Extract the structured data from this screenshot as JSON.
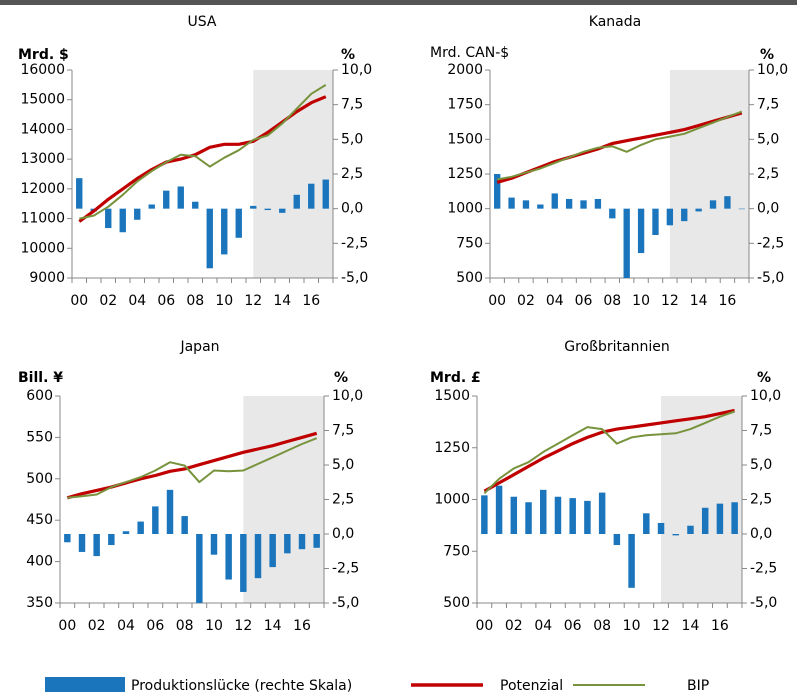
{
  "chart_data": [
    {
      "type": "combo",
      "title": "USA",
      "ylabel": "Mrd. $",
      "y2label": "%",
      "categories": [
        "00",
        null,
        "02",
        null,
        "04",
        null,
        "06",
        null,
        "08",
        null,
        "10",
        null,
        "12",
        null,
        "14",
        null,
        "16",
        null
      ],
      "ylim": [
        9000,
        16000
      ],
      "yticks": [
        9000,
        10000,
        11000,
        12000,
        13000,
        14000,
        15000,
        16000
      ],
      "y2lim": [
        -5,
        10
      ],
      "y2ticks": [
        {
          "value": -5,
          "label": "-5,0"
        },
        {
          "value": -2.5,
          "label": "-2,5"
        },
        {
          "value": 0,
          "label": "0,0"
        },
        {
          "value": 2.5,
          "label": "2,5"
        },
        {
          "value": 5,
          "label": "5,0"
        },
        {
          "value": 7.5,
          "label": "7,5"
        },
        {
          "value": 10,
          "label": "10,0"
        }
      ],
      "series": [
        {
          "name": "Produktionslücke (rechte Skala)",
          "color": "#1a75bc",
          "axis": "y2",
          "kind": "bar",
          "values": [
            2.2,
            -0.2,
            -1.4,
            -1.7,
            -0.8,
            0.3,
            1.3,
            1.6,
            0.5,
            -4.3,
            -3.3,
            -2.1,
            0.2,
            -0.1,
            -0.3,
            1.0,
            1.8,
            2.1
          ]
        },
        {
          "name": "Potenzial",
          "color": "#c00000",
          "kind": "line",
          "values": [
            10900,
            11250,
            11650,
            12000,
            12350,
            12650,
            12900,
            13000,
            13150,
            13400,
            13500,
            13500,
            13600,
            13900,
            14250,
            14600,
            14900,
            15100
          ]
        },
        {
          "name": "BIP",
          "color": "#77933c",
          "kind": "line",
          "values": [
            11000,
            11100,
            11400,
            11800,
            12250,
            12600,
            12900,
            13150,
            13100,
            12750,
            13050,
            13300,
            13650,
            13800,
            14200,
            14700,
            15200,
            15500
          ]
        }
      ]
    },
    {
      "type": "combo",
      "title": "Kanada",
      "ylabel": "Mrd. CAN-$",
      "y2label": "%",
      "categories": [
        "00",
        null,
        "02",
        null,
        "04",
        null,
        "06",
        null,
        "08",
        null,
        "10",
        null,
        "12",
        null,
        "14",
        null,
        "16",
        null
      ],
      "ylim": [
        500,
        2000
      ],
      "yticks": [
        500,
        750,
        1000,
        1250,
        1500,
        1750,
        2000
      ],
      "y2lim": [
        -5,
        10
      ],
      "y2ticks": [
        {
          "value": -5,
          "label": "-5,0"
        },
        {
          "value": -2.5,
          "label": "-2,5"
        },
        {
          "value": 0,
          "label": "0,0"
        },
        {
          "value": 2.5,
          "label": "2,5"
        },
        {
          "value": 5,
          "label": "5,0"
        },
        {
          "value": 7.5,
          "label": "7,5"
        },
        {
          "value": 10,
          "label": "10,0"
        }
      ],
      "series": [
        {
          "name": "Produktionslücke (rechte Skala)",
          "color": "#1a75bc",
          "axis": "y2",
          "kind": "bar",
          "values": [
            2.5,
            0.8,
            0.6,
            0.3,
            1.1,
            0.7,
            0.6,
            0.7,
            -0.7,
            -5.0,
            -3.2,
            -1.9,
            -1.2,
            -0.9,
            -0.2,
            0.6,
            0.9,
            0.0
          ]
        },
        {
          "name": "Potenzial",
          "color": "#c00000",
          "kind": "line",
          "values": [
            1190,
            1220,
            1260,
            1300,
            1340,
            1370,
            1400,
            1430,
            1470,
            1490,
            1510,
            1530,
            1550,
            1570,
            1600,
            1630,
            1660,
            1690
          ]
        },
        {
          "name": "BIP",
          "color": "#77933c",
          "kind": "line",
          "values": [
            1210,
            1230,
            1260,
            1290,
            1330,
            1370,
            1410,
            1440,
            1450,
            1410,
            1460,
            1500,
            1520,
            1540,
            1580,
            1620,
            1660,
            1700
          ]
        }
      ]
    },
    {
      "type": "combo",
      "title": "Japan",
      "ylabel": "Bill. ¥",
      "y2label": "%",
      "categories": [
        "00",
        null,
        "02",
        null,
        "04",
        null,
        "06",
        null,
        "08",
        null,
        "10",
        null,
        "12",
        null,
        "14",
        null,
        "16",
        null
      ],
      "ylim": [
        350,
        600
      ],
      "yticks": [
        350,
        400,
        450,
        500,
        550,
        600
      ],
      "y2lim": [
        -5,
        10
      ],
      "y2ticks": [
        {
          "value": -5,
          "label": "-5,0"
        },
        {
          "value": -2.5,
          "label": "-2,5"
        },
        {
          "value": 0,
          "label": "0,0"
        },
        {
          "value": 2.5,
          "label": "2,5"
        },
        {
          "value": 5,
          "label": "5,0"
        },
        {
          "value": 7.5,
          "label": "7,5"
        },
        {
          "value": 10,
          "label": "10,0"
        }
      ],
      "series": [
        {
          "name": "Produktionslücke (rechte Skala)",
          "color": "#1a75bc",
          "axis": "y2",
          "kind": "bar",
          "values": [
            -0.6,
            -1.3,
            -1.6,
            -0.8,
            0.2,
            0.9,
            2.0,
            3.2,
            1.3,
            -5.0,
            -1.5,
            -3.3,
            -4.2,
            -3.2,
            -2.4,
            -1.4,
            -1.1,
            -1.0
          ]
        },
        {
          "name": "Potenzial",
          "color": "#c00000",
          "kind": "line",
          "values": [
            477,
            482,
            486,
            490,
            495,
            500,
            504,
            509,
            512,
            517,
            522,
            527,
            532,
            536,
            540,
            545,
            550,
            555
          ]
        },
        {
          "name": "BIP",
          "color": "#77933c",
          "kind": "line",
          "values": [
            477,
            479,
            481,
            490,
            496,
            502,
            510,
            520,
            516,
            496,
            510,
            509,
            510,
            518,
            526,
            534,
            542,
            549
          ]
        }
      ]
    },
    {
      "type": "combo",
      "title": "Großbritannien",
      "ylabel": "Mrd. £",
      "y2label": "%",
      "categories": [
        "00",
        null,
        "02",
        null,
        "04",
        null,
        "06",
        null,
        "08",
        null,
        "10",
        null,
        "12",
        null,
        "14",
        null,
        "16",
        null
      ],
      "ylim": [
        500,
        1500
      ],
      "yticks": [
        500,
        750,
        1000,
        1250,
        1500
      ],
      "y2lim": [
        -5,
        10
      ],
      "y2ticks": [
        {
          "value": -5,
          "label": "-5,0"
        },
        {
          "value": -2.5,
          "label": "-2,5"
        },
        {
          "value": 0,
          "label": "0,0"
        },
        {
          "value": 2.5,
          "label": "2,5"
        },
        {
          "value": 5,
          "label": "5,0"
        },
        {
          "value": 7.5,
          "label": "7,5"
        },
        {
          "value": 10,
          "label": "10,0"
        }
      ],
      "series": [
        {
          "name": "Produktionslücke (rechte Skala)",
          "color": "#1a75bc",
          "axis": "y2",
          "kind": "bar",
          "values": [
            2.8,
            3.5,
            2.7,
            2.3,
            3.2,
            2.7,
            2.6,
            2.4,
            3.0,
            -0.8,
            -3.9,
            1.5,
            0.8,
            -0.1,
            0.6,
            1.9,
            2.2,
            2.3
          ]
        },
        {
          "name": "Potenzial",
          "color": "#c00000",
          "kind": "line",
          "values": [
            1040,
            1080,
            1120,
            1160,
            1200,
            1235,
            1270,
            1300,
            1325,
            1340,
            1350,
            1360,
            1370,
            1380,
            1390,
            1400,
            1415,
            1430
          ]
        },
        {
          "name": "BIP",
          "color": "#77933c",
          "kind": "line",
          "values": [
            1030,
            1100,
            1150,
            1180,
            1230,
            1270,
            1310,
            1350,
            1340,
            1270,
            1300,
            1310,
            1315,
            1320,
            1340,
            1370,
            1400,
            1425
          ]
        }
      ]
    }
  ]
}
